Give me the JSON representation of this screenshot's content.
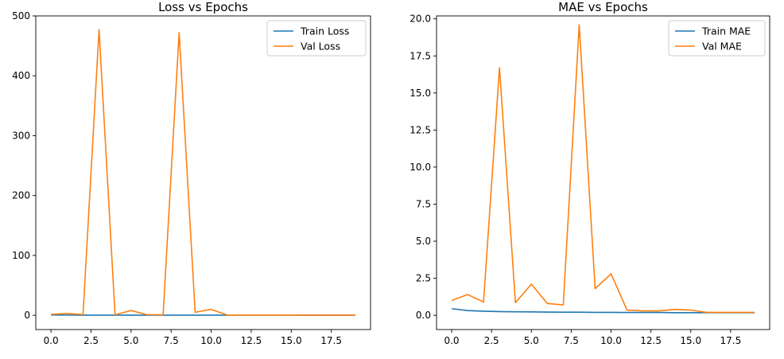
{
  "chart_data": [
    {
      "type": "line",
      "title": "Loss vs Epochs",
      "xlabel": "",
      "ylabel": "",
      "x": [
        0,
        1,
        2,
        3,
        4,
        5,
        6,
        7,
        8,
        9,
        10,
        11,
        12,
        13,
        14,
        15,
        16,
        17,
        18,
        19
      ],
      "xlim": [
        -0.95,
        19.95
      ],
      "ylim": [
        -23.8,
        500
      ],
      "xticks": [
        0.0,
        2.5,
        5.0,
        7.5,
        10.0,
        12.5,
        15.0,
        17.5
      ],
      "xtick_labels": [
        "0.0",
        "2.5",
        "5.0",
        "7.5",
        "10.0",
        "12.5",
        "15.0",
        "17.5"
      ],
      "yticks": [
        0,
        100,
        200,
        300,
        400,
        500
      ],
      "ytick_labels": [
        "0",
        "100",
        "200",
        "300",
        "400",
        "500"
      ],
      "grid": false,
      "legend_position": "top-right",
      "series": [
        {
          "name": "Train Loss",
          "color": "#1f77b4",
          "values": [
            0.5,
            0.3,
            0.25,
            0.22,
            0.2,
            0.2,
            0.19,
            0.19,
            0.18,
            0.18,
            0.18,
            0.17,
            0.17,
            0.17,
            0.17,
            0.16,
            0.16,
            0.16,
            0.16,
            0.16
          ]
        },
        {
          "name": "Val Loss",
          "color": "#ff7f0e",
          "values": [
            1.5,
            3,
            1.2,
            477,
            0.8,
            8,
            1,
            0.7,
            472,
            5,
            10,
            0.4,
            0.35,
            0.35,
            0.4,
            0.35,
            0.2,
            0.2,
            0.2,
            0.2
          ]
        }
      ]
    },
    {
      "type": "line",
      "title": "MAE vs Epochs",
      "xlabel": "",
      "ylabel": "",
      "x": [
        0,
        1,
        2,
        3,
        4,
        5,
        6,
        7,
        8,
        9,
        10,
        11,
        12,
        13,
        14,
        15,
        16,
        17,
        18,
        19
      ],
      "xlim": [
        -0.95,
        19.95
      ],
      "ylim": [
        -0.96,
        20.2
      ],
      "xticks": [
        0.0,
        2.5,
        5.0,
        7.5,
        10.0,
        12.5,
        15.0,
        17.5
      ],
      "xtick_labels": [
        "0.0",
        "2.5",
        "5.0",
        "7.5",
        "10.0",
        "12.5",
        "15.0",
        "17.5"
      ],
      "yticks": [
        0,
        2.5,
        5,
        7.5,
        10,
        12.5,
        15,
        17.5,
        20
      ],
      "ytick_labels": [
        "0.0",
        "2.5",
        "5.0",
        "7.5",
        "10.0",
        "12.5",
        "15.0",
        "17.5",
        "20.0"
      ],
      "grid": false,
      "legend_position": "top-right",
      "series": [
        {
          "name": "Train MAE",
          "color": "#1f77b4",
          "values": [
            0.45,
            0.32,
            0.28,
            0.25,
            0.24,
            0.23,
            0.22,
            0.21,
            0.21,
            0.2,
            0.2,
            0.19,
            0.19,
            0.19,
            0.18,
            0.18,
            0.18,
            0.18,
            0.18,
            0.18
          ]
        },
        {
          "name": "Val MAE",
          "color": "#ff7f0e",
          "values": [
            1.0,
            1.4,
            0.9,
            16.7,
            0.85,
            2.1,
            0.8,
            0.7,
            19.6,
            1.8,
            2.8,
            0.35,
            0.3,
            0.3,
            0.4,
            0.35,
            0.2,
            0.2,
            0.2,
            0.2
          ]
        }
      ]
    }
  ]
}
